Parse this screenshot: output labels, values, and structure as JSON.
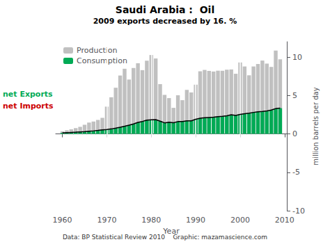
{
  "chart_data": {
    "type": "bar",
    "title": "Saudi Arabia :  Oil",
    "subtitle": "2009 exports decreased by 16. %",
    "xlabel": "Year",
    "ylabel": "million barrels per day",
    "footer": "Data: BP Statistical Review 2010    Graphic: mazamascience.com",
    "x": [
      1960,
      1961,
      1962,
      1963,
      1964,
      1965,
      1966,
      1967,
      1968,
      1969,
      1970,
      1971,
      1972,
      1973,
      1974,
      1975,
      1976,
      1977,
      1978,
      1979,
      1980,
      1981,
      1982,
      1983,
      1984,
      1985,
      1986,
      1987,
      1988,
      1989,
      1990,
      1991,
      1992,
      1993,
      1994,
      1995,
      1996,
      1997,
      1998,
      1999,
      2000,
      2001,
      2002,
      2003,
      2004,
      2005,
      2006,
      2007,
      2008,
      2009
    ],
    "series": [
      {
        "name": "Production",
        "type": "bar",
        "color": "#c0c0c0",
        "values": [
          0.33,
          0.47,
          0.6,
          0.75,
          0.92,
          1.19,
          1.47,
          1.61,
          1.82,
          2.09,
          3.55,
          4.77,
          6.01,
          7.6,
          8.48,
          7.08,
          8.58,
          9.2,
          8.3,
          9.53,
          10.27,
          9.82,
          6.48,
          5.08,
          4.66,
          3.39,
          5.04,
          4.39,
          5.73,
          5.4,
          6.41,
          8.15,
          8.33,
          8.2,
          8.12,
          8.23,
          8.22,
          8.36,
          8.39,
          7.83,
          9.3,
          8.78,
          7.63,
          8.78,
          9.1,
          9.55,
          9.15,
          8.72,
          10.85,
          9.71
        ]
      },
      {
        "name": "Consumption",
        "type": "bar",
        "color": "#00aa55",
        "values": [
          0.13,
          0.16,
          0.19,
          0.22,
          0.26,
          0.3,
          0.35,
          0.4,
          0.46,
          0.53,
          0.57,
          0.65,
          0.75,
          0.87,
          1.0,
          1.14,
          1.3,
          1.5,
          1.62,
          1.8,
          1.84,
          1.86,
          1.66,
          1.44,
          1.52,
          1.46,
          1.6,
          1.61,
          1.7,
          1.7,
          1.9,
          2.05,
          2.1,
          2.14,
          2.17,
          2.25,
          2.28,
          2.36,
          2.49,
          2.4,
          2.54,
          2.62,
          2.7,
          2.8,
          2.88,
          2.93,
          3.0,
          3.1,
          3.3,
          3.35
        ]
      },
      {
        "name": "Consumption",
        "type": "line",
        "color": "#000000",
        "values": [
          0.13,
          0.16,
          0.19,
          0.22,
          0.26,
          0.3,
          0.35,
          0.4,
          0.46,
          0.53,
          0.57,
          0.65,
          0.75,
          0.87,
          1.0,
          1.14,
          1.3,
          1.5,
          1.62,
          1.8,
          1.84,
          1.86,
          1.66,
          1.44,
          1.52,
          1.46,
          1.6,
          1.61,
          1.7,
          1.7,
          1.9,
          2.05,
          2.1,
          2.14,
          2.17,
          2.25,
          2.28,
          2.36,
          2.49,
          2.4,
          2.54,
          2.62,
          2.7,
          2.8,
          2.88,
          2.93,
          3.0,
          3.1,
          3.3,
          3.35
        ]
      }
    ],
    "vlines": {
      "values": [
        1970,
        1980,
        1990,
        2000
      ],
      "color": "#ffffff"
    },
    "annotations": [
      {
        "text": "net Exports",
        "color": "#00aa55"
      },
      {
        "text": "net Imports",
        "color": "#cc0000"
      }
    ],
    "xlim": [
      1958.5,
      2010.5
    ],
    "xticks": [
      1960,
      1970,
      1980,
      1990,
      2000,
      2010
    ],
    "ylim": [
      -10,
      12
    ],
    "yticks": [
      -10,
      -5,
      0,
      5,
      10
    ],
    "grid": false,
    "legend": "upper left"
  }
}
